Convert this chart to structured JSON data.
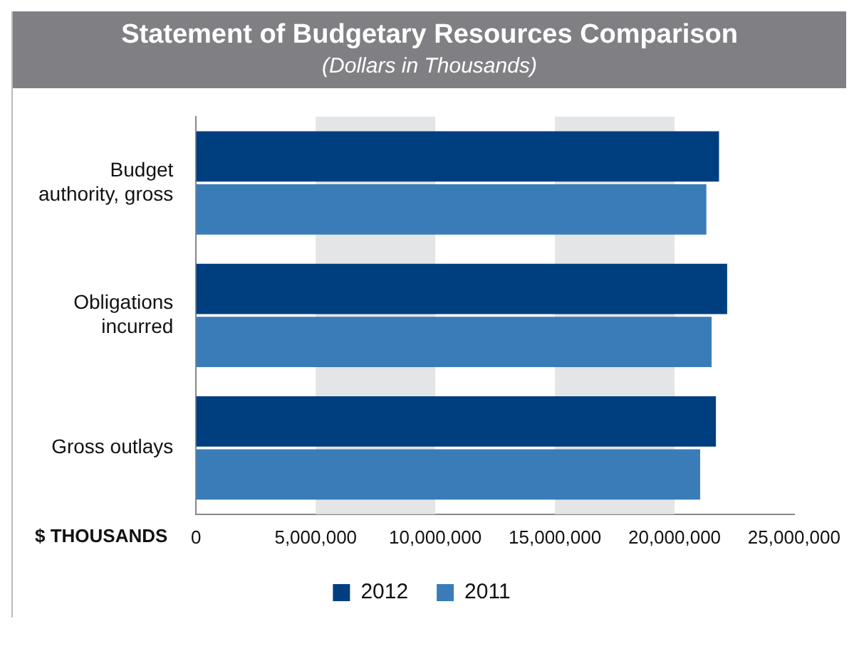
{
  "chart_data": {
    "type": "bar",
    "orientation": "horizontal",
    "title": "Statement of Budgetary Resources Comparison",
    "subtitle": "(Dollars in Thousands)",
    "xlabel": "$ THOUSANDS",
    "categories": [
      "Budget authority, gross",
      "Obligations incurred",
      "Gross outlays"
    ],
    "series": [
      {
        "name": "2012",
        "color": "#003f7f",
        "values": [
          21860000,
          22200000,
          21730000
        ]
      },
      {
        "name": "2011",
        "color": "#3a7cb8",
        "values": [
          21330000,
          21550000,
          21070000
        ]
      }
    ],
    "xlim": [
      0,
      25000000
    ],
    "xticks": [
      0,
      {
        "value": 5000000,
        "label": "5,000,000"
      },
      {
        "value": 10000000,
        "label": "10,000,000"
      },
      {
        "value": 15000000,
        "label": "15,000,000"
      },
      {
        "value": 20000000,
        "label": "20,000,000"
      },
      {
        "value": 25000000,
        "label": "25,000,000"
      }
    ],
    "bands": [
      {
        "axis": "x",
        "from": 5000000,
        "to": 10000000,
        "color": "#e4e5e6"
      },
      {
        "axis": "x",
        "from": 15000000,
        "to": 20000000,
        "color": "#e4e5e6"
      }
    ],
    "grid": false,
    "legend": "bottom"
  }
}
